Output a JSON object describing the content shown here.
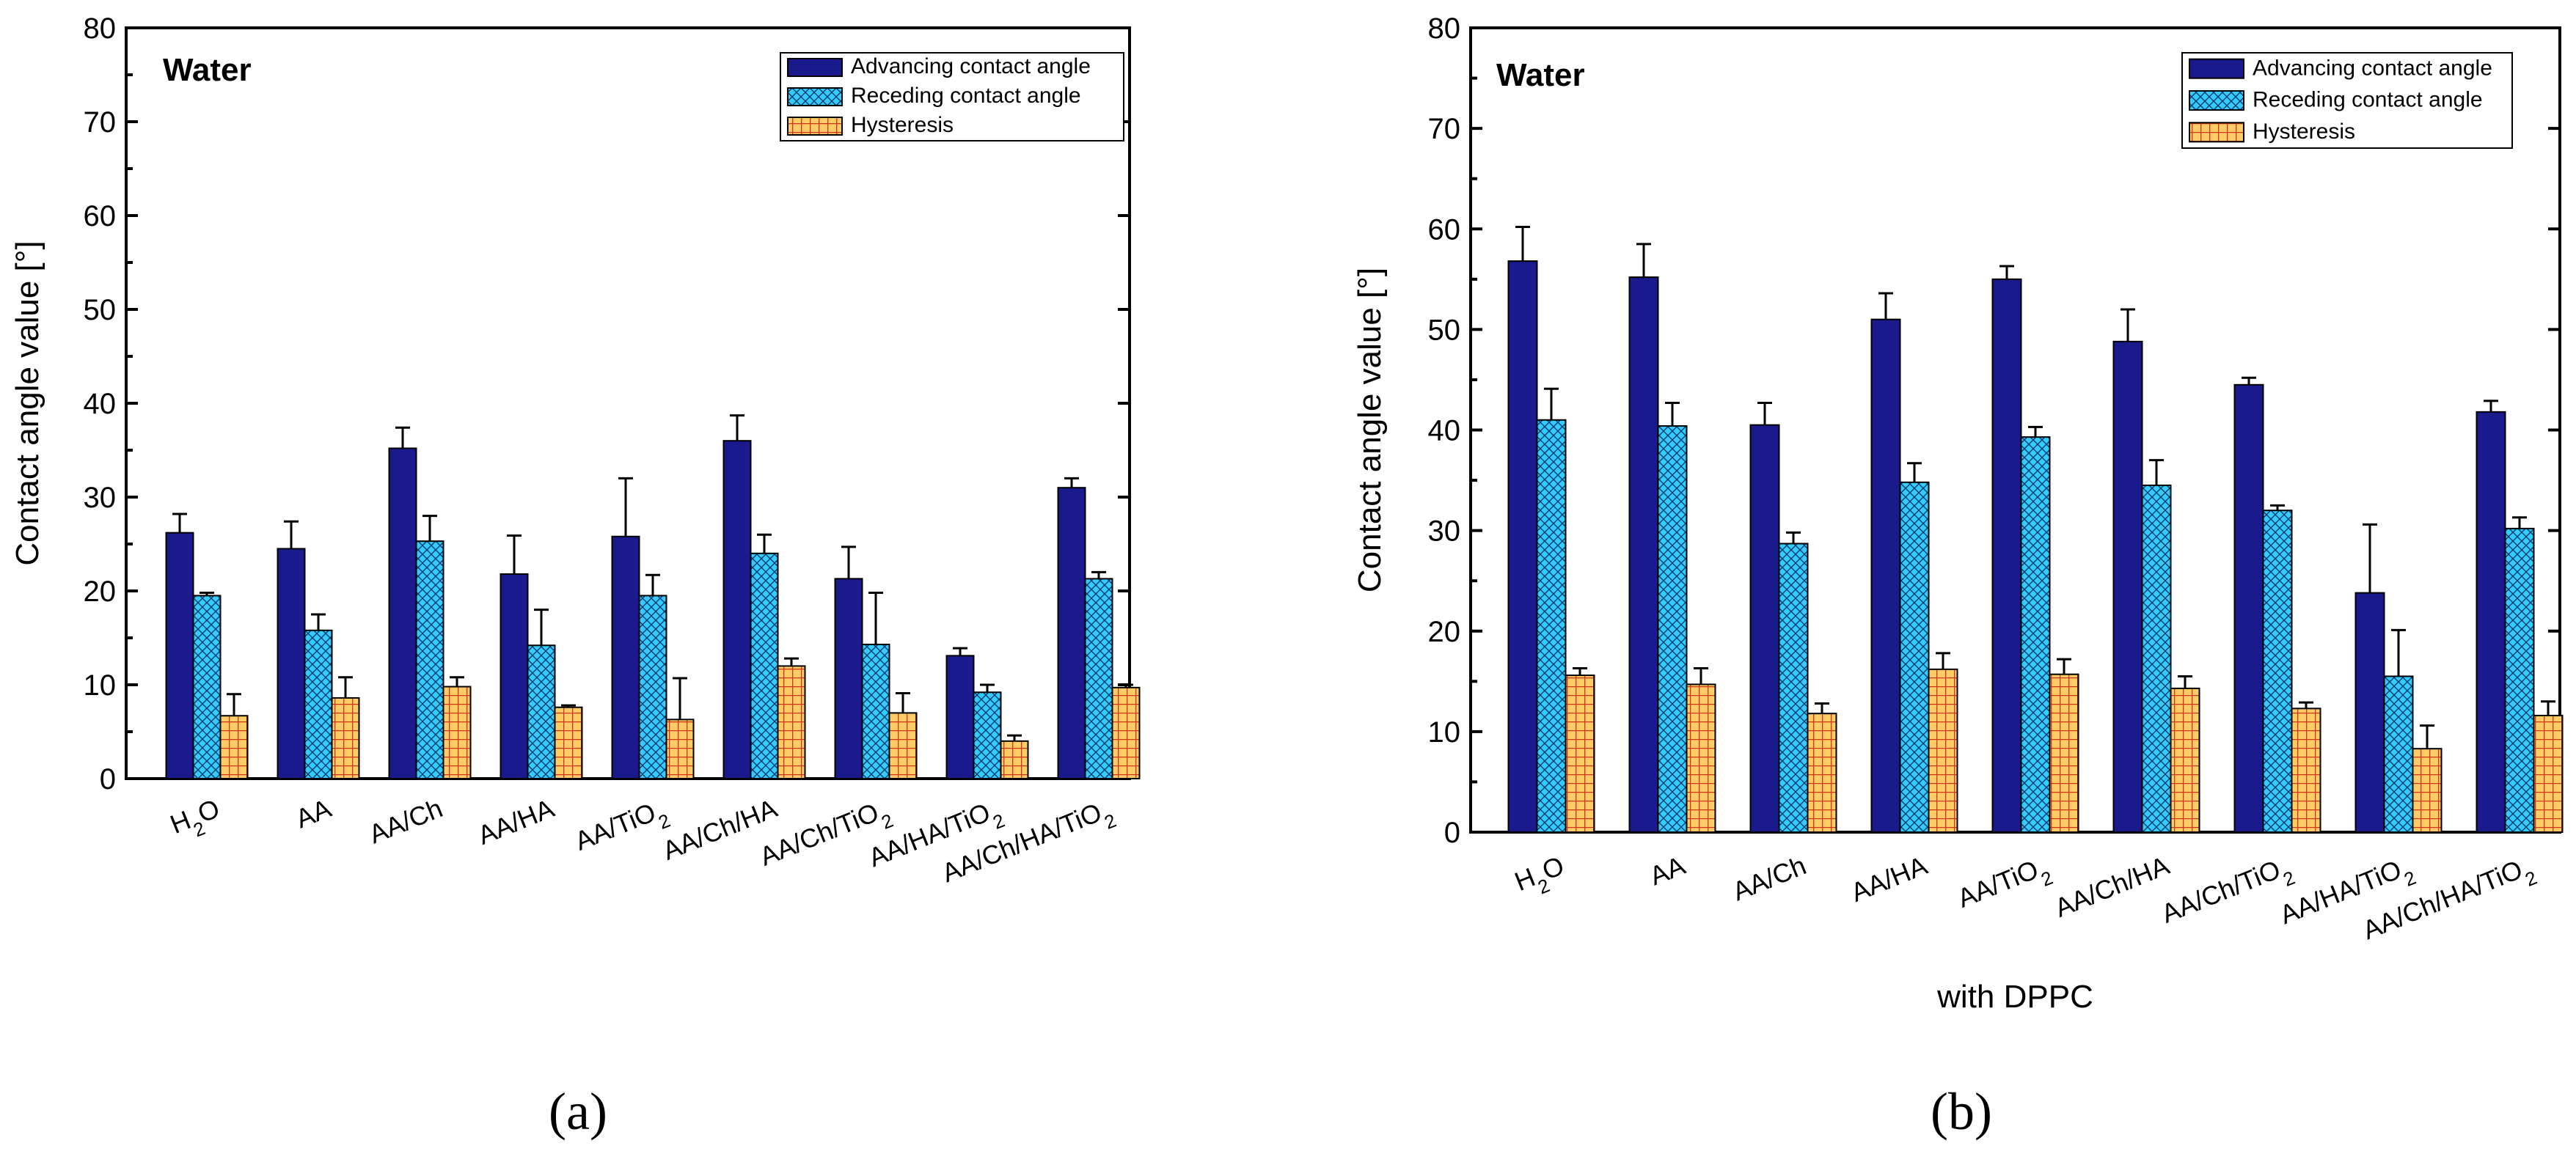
{
  "colors": {
    "advancing": "#1a1a8c",
    "receding": "#33ccff",
    "hysteresis": "#ff9933"
  },
  "chart_data": [
    {
      "type": "bar",
      "panel": "a",
      "caption": "(a)",
      "title": "Water",
      "xlabel": "",
      "ylabel": "Contact angle value [°]",
      "ylim": [
        0,
        80
      ],
      "yticks": [
        0,
        10,
        20,
        30,
        40,
        50,
        60,
        70,
        80
      ],
      "legend_position": "top-right",
      "categories": [
        "H2O",
        "AA",
        "AA/Ch",
        "AA/HA",
        "AA/TiO2",
        "AA/Ch/HA",
        "AA/Ch/TiO2",
        "AA/HA/TiO2",
        "AA/Ch/HA/TiO2"
      ],
      "series": [
        {
          "name": "Advancing contact angle",
          "key": "advancing",
          "values": [
            26.2,
            24.5,
            35.2,
            21.8,
            25.8,
            36.0,
            21.3,
            13.1,
            31.0
          ],
          "errors": [
            2.0,
            2.9,
            2.2,
            4.1,
            6.2,
            2.7,
            3.4,
            0.8,
            1.0
          ]
        },
        {
          "name": "Receding contact angle",
          "key": "receding",
          "values": [
            19.5,
            15.8,
            25.3,
            14.2,
            19.5,
            24.0,
            14.3,
            9.2,
            21.3
          ],
          "errors": [
            0.3,
            1.7,
            2.7,
            3.8,
            2.2,
            2.0,
            5.5,
            0.8,
            0.7
          ]
        },
        {
          "name": "Hysteresis",
          "key": "hysteresis",
          "values": [
            6.7,
            8.6,
            9.8,
            7.6,
            6.3,
            12.0,
            7.0,
            4.0,
            9.7
          ],
          "errors": [
            2.3,
            2.2,
            1.0,
            0.2,
            4.4,
            0.8,
            2.1,
            0.6,
            0.3
          ]
        }
      ]
    },
    {
      "type": "bar",
      "panel": "b",
      "caption": "(b)",
      "title": "Water",
      "xlabel": "with DPPC",
      "ylabel": "Contact angle value [°]",
      "ylim": [
        0,
        80
      ],
      "yticks": [
        0,
        10,
        20,
        30,
        40,
        50,
        60,
        70,
        80
      ],
      "legend_position": "top-right",
      "categories": [
        "H2O",
        "AA",
        "AA/Ch",
        "AA/HA",
        "AA/TiO2",
        "AA/Ch/HA",
        "AA/Ch/TiO2",
        "AA/HA/TiO2",
        "AA/Ch/HA/TiO2"
      ],
      "series": [
        {
          "name": "Advancing contact angle",
          "key": "advancing",
          "values": [
            56.8,
            55.2,
            40.5,
            51.0,
            55.0,
            48.8,
            44.5,
            23.8,
            41.8
          ],
          "errors": [
            3.4,
            3.3,
            2.2,
            2.6,
            1.3,
            3.2,
            0.7,
            6.8,
            1.1
          ]
        },
        {
          "name": "Receding contact angle",
          "key": "receding",
          "values": [
            41.0,
            40.4,
            28.7,
            34.8,
            39.3,
            34.5,
            32.0,
            15.5,
            30.2
          ],
          "errors": [
            3.1,
            2.3,
            1.1,
            1.9,
            1.0,
            2.5,
            0.5,
            4.6,
            1.1
          ]
        },
        {
          "name": "Hysteresis",
          "key": "hysteresis",
          "values": [
            15.6,
            14.7,
            11.8,
            16.2,
            15.7,
            14.3,
            12.3,
            8.3,
            11.6
          ],
          "errors": [
            0.7,
            1.6,
            1.0,
            1.6,
            1.5,
            1.2,
            0.6,
            2.3,
            1.4
          ]
        }
      ]
    }
  ]
}
